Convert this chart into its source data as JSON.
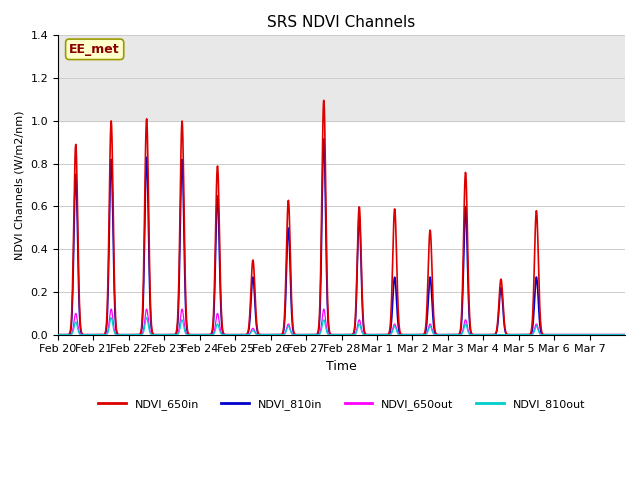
{
  "title": "SRS NDVI Channels",
  "ylabel": "NDVI Channels (W/m2/nm)",
  "xlabel": "Time",
  "annotation": "EE_met",
  "ylim": [
    0,
    1.4
  ],
  "grid_color": "#cccccc",
  "series": {
    "NDVI_650in": {
      "color": "#dd0000",
      "lw": 1.2
    },
    "NDVI_810in": {
      "color": "#0000cc",
      "lw": 1.2
    },
    "NDVI_650out": {
      "color": "#ff00ff",
      "lw": 0.9
    },
    "NDVI_810out": {
      "color": "#00cccc",
      "lw": 0.9
    }
  },
  "xtick_labels": [
    "Feb 20",
    "Feb 21",
    "Feb 22",
    "Feb 23",
    "Feb 24",
    "Feb 25",
    "Feb 26",
    "Feb 27",
    "Feb 28",
    "Mar 1",
    "Mar 2",
    "Mar 3",
    "Mar 4",
    "Mar 5",
    "Mar 6",
    "Mar 7"
  ],
  "shaded_region": [
    1.0,
    1.4
  ],
  "peaks_650in": [
    0.89,
    1.0,
    1.01,
    1.0,
    0.79,
    0.35,
    0.63,
    1.1,
    0.6,
    0.59,
    0.49,
    0.76,
    0.26,
    0.58,
    0.0,
    0.0
  ],
  "peaks_810in": [
    0.75,
    0.82,
    0.83,
    0.82,
    0.65,
    0.27,
    0.5,
    0.92,
    0.55,
    0.27,
    0.27,
    0.6,
    0.22,
    0.27,
    0.0,
    0.0
  ],
  "peaks_650out": [
    0.1,
    0.12,
    0.12,
    0.12,
    0.1,
    0.03,
    0.05,
    0.12,
    0.07,
    0.05,
    0.05,
    0.07,
    0.0,
    0.05,
    0.0,
    0.0
  ],
  "peaks_810out": [
    0.06,
    0.08,
    0.08,
    0.07,
    0.05,
    0.02,
    0.04,
    0.07,
    0.05,
    0.04,
    0.04,
    0.05,
    0.0,
    0.04,
    0.0,
    0.0
  ]
}
